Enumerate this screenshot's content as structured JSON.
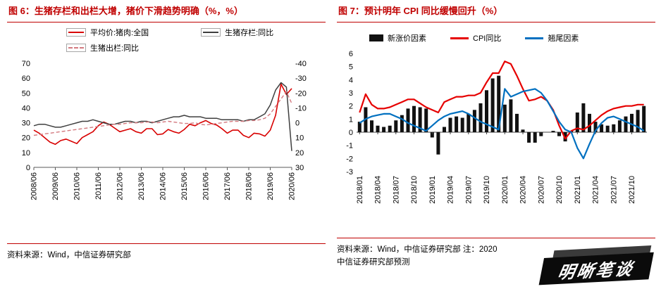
{
  "figure6": {
    "title": "图 6：生猪存栏和出栏大增，猪价下滑趋势明确（%，%）",
    "source": "资料来源：Wind，中信证券研究部",
    "legend": [
      {
        "label": "平均价:猪肉:全国",
        "type": "line",
        "color": "#d80000",
        "dash": false
      },
      {
        "label": "生猪存栏:同比",
        "type": "line",
        "color": "#3f3f3f",
        "dash": false
      },
      {
        "label": "生猪出栏:同比",
        "type": "line",
        "color": "#d3797f",
        "dash": true
      }
    ]
  },
  "figure7": {
    "title": "图 7：预计明年 CPI 同比缓慢回升（%）",
    "source_line1": "资料来源：Wind，中信证券研究部  注：2020",
    "source_line2": "中信证券研究部预测",
    "legend": [
      {
        "label": "新涨价因素",
        "type": "bar",
        "color": "#111111"
      },
      {
        "label": "CPI同比",
        "type": "line",
        "color": "#e60000",
        "dash": false
      },
      {
        "label": "翘尾因素",
        "type": "line",
        "color": "#0070c0",
        "dash": false
      }
    ]
  },
  "watermark": {
    "text": "明晰笔谈"
  },
  "chart_data": [
    {
      "type": "line",
      "title": "生猪存栏和出栏大增，猪价下滑趋势明确（%，%）",
      "n_points": 49,
      "x_tick_labels": [
        "2008/06",
        "2009/06",
        "2010/06",
        "2011/06",
        "2012/06",
        "2013/06",
        "2014/06",
        "2015/06",
        "2016/06",
        "2017/06",
        "2018/06",
        "2019/06",
        "2020/06"
      ],
      "x_tick_index": [
        0,
        4,
        8,
        12,
        16,
        20,
        24,
        28,
        32,
        36,
        40,
        44,
        48
      ],
      "left_axis": {
        "top": 70,
        "bottom": 0,
        "ticks": [
          70,
          60,
          50,
          40,
          30,
          20,
          10,
          0
        ]
      },
      "right_axis": {
        "top": -40,
        "bottom": 30,
        "ticks": [
          -40,
          -30,
          -20,
          -10,
          0,
          10,
          20,
          30
        ],
        "inverted": true
      },
      "grid": false,
      "legend_position": "top",
      "series": [
        {
          "name": "平均价:猪肉:全国",
          "axis": "left",
          "color": "#d80000",
          "dash": false,
          "width": 1.6,
          "values": [
            25,
            23,
            20,
            17,
            15.5,
            18,
            19,
            17.5,
            16,
            20,
            22,
            24,
            28,
            30.5,
            29,
            26.5,
            24,
            25,
            26,
            24,
            23,
            26,
            26,
            22,
            22.5,
            25.5,
            24,
            23,
            25.5,
            29,
            28,
            30,
            31.5,
            29.5,
            28.5,
            26,
            23,
            25,
            25,
            21.5,
            20,
            23,
            22.5,
            21,
            25,
            35,
            56,
            49,
            53
          ]
        },
        {
          "name": "生猪存栏:同比",
          "axis": "right",
          "color": "#3f3f3f",
          "dash": false,
          "width": 1.5,
          "values": [
            2,
            1,
            1,
            2,
            3,
            3,
            2,
            1,
            0,
            -1,
            -1,
            -2,
            -1,
            0,
            1,
            1,
            0,
            -1,
            -1,
            0,
            -1,
            -1,
            0,
            -1,
            -2,
            -3,
            -4,
            -4,
            -5,
            -4,
            -4,
            -4,
            -3,
            -3,
            -3,
            -2,
            -2,
            -2,
            -2,
            -1,
            -2,
            -2,
            -4,
            -6,
            -12,
            -22,
            -27,
            -24,
            19
          ]
        },
        {
          "name": "生猪出栏:同比",
          "axis": "right",
          "color": "#d3797f",
          "dash": true,
          "width": 1.4,
          "values": [
            8.5,
            8,
            7.5,
            7,
            6.5,
            6,
            5.5,
            5,
            4.5,
            4,
            3.5,
            3,
            2.5,
            2,
            1.5,
            1,
            1,
            0.5,
            0,
            0,
            0,
            -0.5,
            -0.5,
            0,
            -0.5,
            -1,
            -0.5,
            0,
            0.5,
            0.5,
            0,
            1,
            1.5,
            1,
            0.5,
            0,
            -0.5,
            -1,
            -1,
            -1,
            -1.5,
            -1.5,
            -2,
            -3,
            -6,
            -11,
            -16,
            -21,
            -13
          ]
        }
      ]
    },
    {
      "type": "combo",
      "title": "预计明年 CPI 同比缓慢回升（%）",
      "n_points": 48,
      "x_tick_labels": [
        "2018/01",
        "2018/04",
        "2018/07",
        "2018/10",
        "2019/01",
        "2019/04",
        "2019/07",
        "2019/10",
        "2020/01",
        "2020/04",
        "2020/07",
        "2020/10",
        "2021/01",
        "2021/04",
        "2021/07",
        "2021/10"
      ],
      "x_tick_index": [
        0,
        3,
        6,
        9,
        12,
        15,
        18,
        21,
        24,
        27,
        30,
        33,
        36,
        39,
        42,
        45
      ],
      "y_axis": {
        "top": 6,
        "bottom": -3,
        "ticks": [
          6,
          5,
          4,
          3,
          2,
          1,
          0,
          -1,
          -2,
          -3
        ]
      },
      "grid": false,
      "legend_position": "top",
      "bars": {
        "name": "新涨价因素",
        "color": "#111111",
        "values": [
          0.8,
          1.9,
          0.9,
          0.5,
          0.4,
          0.5,
          0.9,
          1.3,
          1.8,
          2.0,
          1.9,
          1.8,
          -0.4,
          -1.7,
          0.4,
          1.1,
          1.2,
          1.1,
          1.4,
          1.7,
          2.2,
          3.2,
          4.1,
          4.3,
          2.1,
          2.5,
          1.4,
          0.2,
          -0.8,
          -0.8,
          -0.3,
          0.0,
          0.1,
          -0.3,
          -0.7,
          0.1,
          1.5,
          2.2,
          1.4,
          0.8,
          0.6,
          0.5,
          0.6,
          0.9,
          1.2,
          1.4,
          1.7,
          2.0
        ]
      },
      "lines": [
        {
          "name": "CPI同比",
          "color": "#e60000",
          "values": [
            1.5,
            2.9,
            2.1,
            1.8,
            1.8,
            1.9,
            2.1,
            2.3,
            2.5,
            2.5,
            2.2,
            1.9,
            1.7,
            1.5,
            2.3,
            2.5,
            2.7,
            2.7,
            2.8,
            2.8,
            3.0,
            3.8,
            4.5,
            4.5,
            5.4,
            5.2,
            4.3,
            3.3,
            2.4,
            2.5,
            2.7,
            2.4,
            1.7,
            0.5,
            -0.5,
            0.1,
            0.3,
            0.2,
            0.5,
            0.9,
            1.3,
            1.6,
            1.8,
            1.9,
            2.0,
            2.0,
            2.1,
            2.1
          ]
        },
        {
          "name": "翘尾因素",
          "color": "#0070c0",
          "values": [
            0.7,
            1.0,
            1.2,
            1.3,
            1.4,
            1.4,
            1.2,
            1.0,
            0.7,
            0.5,
            0.3,
            0.1,
            0.5,
            0.9,
            1.2,
            1.4,
            1.5,
            1.6,
            1.4,
            1.1,
            0.8,
            0.6,
            0.4,
            0.2,
            3.3,
            2.7,
            2.9,
            3.1,
            3.2,
            3.3,
            3.0,
            2.4,
            1.6,
            0.8,
            0.2,
            0.0,
            -1.2,
            -2.0,
            -0.9,
            0.1,
            0.7,
            1.1,
            1.2,
            1.0,
            0.8,
            0.6,
            0.4,
            0.1
          ]
        }
      ]
    }
  ]
}
